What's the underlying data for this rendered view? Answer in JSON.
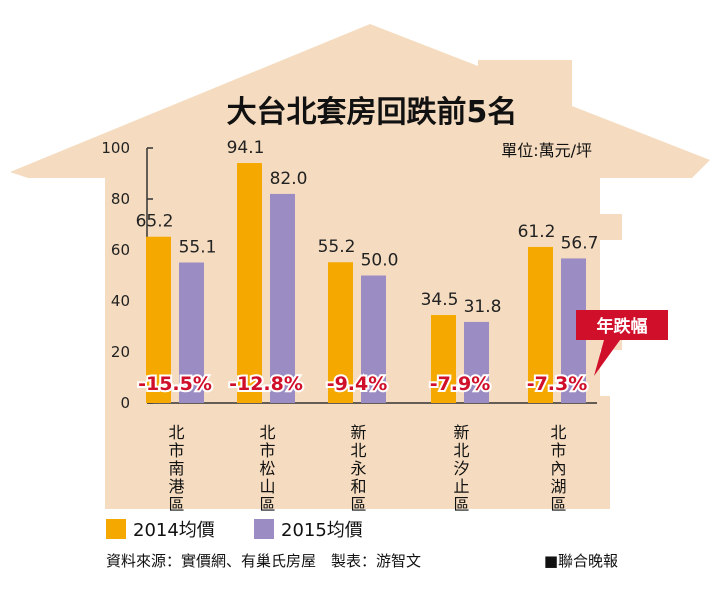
{
  "colors": {
    "house": "#f5dcc0",
    "bar2014": "#f5a800",
    "bar2015": "#9b8cc4",
    "pct": "#d0102a",
    "callout": "#d0102a"
  },
  "chart_data": {
    "type": "bar",
    "title": "大台北套房回跌前5名",
    "unit_label": "單位:萬元/坪",
    "categories": [
      "北市南港區",
      "北市松山區",
      "新北永和區",
      "新北汐止區",
      "北市內湖區"
    ],
    "series": [
      {
        "name": "2014均價",
        "values": [
          65.2,
          94.1,
          55.2,
          34.5,
          61.2
        ],
        "labels": [
          "65.2",
          "94.1",
          "55.2",
          "34.5",
          "61.2"
        ]
      },
      {
        "name": "2015均價",
        "values": [
          55.1,
          82.0,
          50.0,
          31.8,
          56.7
        ],
        "labels": [
          "55.1",
          "82.0",
          "50.0",
          "31.8",
          "56.7"
        ]
      }
    ],
    "annual_change": [
      "-15.5%",
      "-12.8%",
      "-9.4%",
      "-7.9%",
      "-7.3%"
    ],
    "annual_change_label": "年跌幅",
    "ylim": [
      0,
      100
    ],
    "yticks": [
      "0",
      "20",
      "40",
      "60",
      "80",
      "100"
    ],
    "legend": "bottom-left",
    "grid": false
  },
  "footer": {
    "source": "資料來源：實價網、有巢氏房屋　製表：游智文",
    "brand": "■聯合晚報"
  }
}
